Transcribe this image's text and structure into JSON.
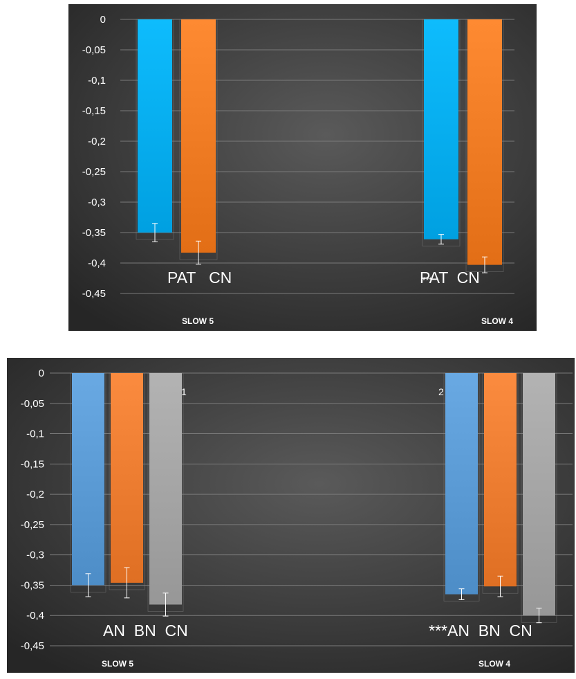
{
  "chart_data": [
    {
      "type": "bar",
      "categories": [
        "SLOW 5",
        "SLOW 4"
      ],
      "series": [
        {
          "values": [
            -0.35,
            -0.361
          ],
          "errors": [
            0.015,
            0.008
          ],
          "color": "#00AEEF"
        },
        {
          "values": [
            -0.383,
            -0.403
          ],
          "errors": [
            0.019,
            0.013
          ],
          "color": "#F07C24"
        }
      ],
      "ylim": [
        -0.45,
        0
      ],
      "yticks": [
        "0",
        "-0,05",
        "-0,1",
        "-0,15",
        "-0,2",
        "-0,25",
        "-0,3",
        "-0,35",
        "-0,4",
        "-0,45"
      ],
      "grid": true,
      "group_labels": [
        "PAT   CN",
        "PAT  CN"
      ],
      "significance": [
        "",
        "***"
      ],
      "background": "#3a3a3a"
    },
    {
      "type": "bar",
      "categories": [
        "SLOW 5",
        "SLOW 4"
      ],
      "series": [
        {
          "values": [
            -0.35,
            -0.365
          ],
          "errors": [
            0.019,
            0.009
          ],
          "color": "#5B9BD5"
        },
        {
          "values": [
            -0.346,
            -0.352
          ],
          "errors": [
            0.025,
            0.017
          ],
          "color": "#ED7D31"
        },
        {
          "values": [
            -0.382,
            -0.4
          ],
          "errors": [
            0.019,
            0.012
          ],
          "color": "#A5A5A5"
        }
      ],
      "ylim": [
        -0.45,
        0
      ],
      "yticks": [
        "0",
        "-0,05",
        "-0,1",
        "-0,15",
        "-0,2",
        "-0,25",
        "-0,3",
        "-0,35",
        "-0,4",
        "-0,45"
      ],
      "grid": true,
      "group_labels": [
        "AN  BN  CN",
        "AN  BN  CN"
      ],
      "significance": [
        "",
        "***"
      ],
      "annotations": [
        "1",
        "2"
      ],
      "background": "#3a3a3a"
    }
  ]
}
